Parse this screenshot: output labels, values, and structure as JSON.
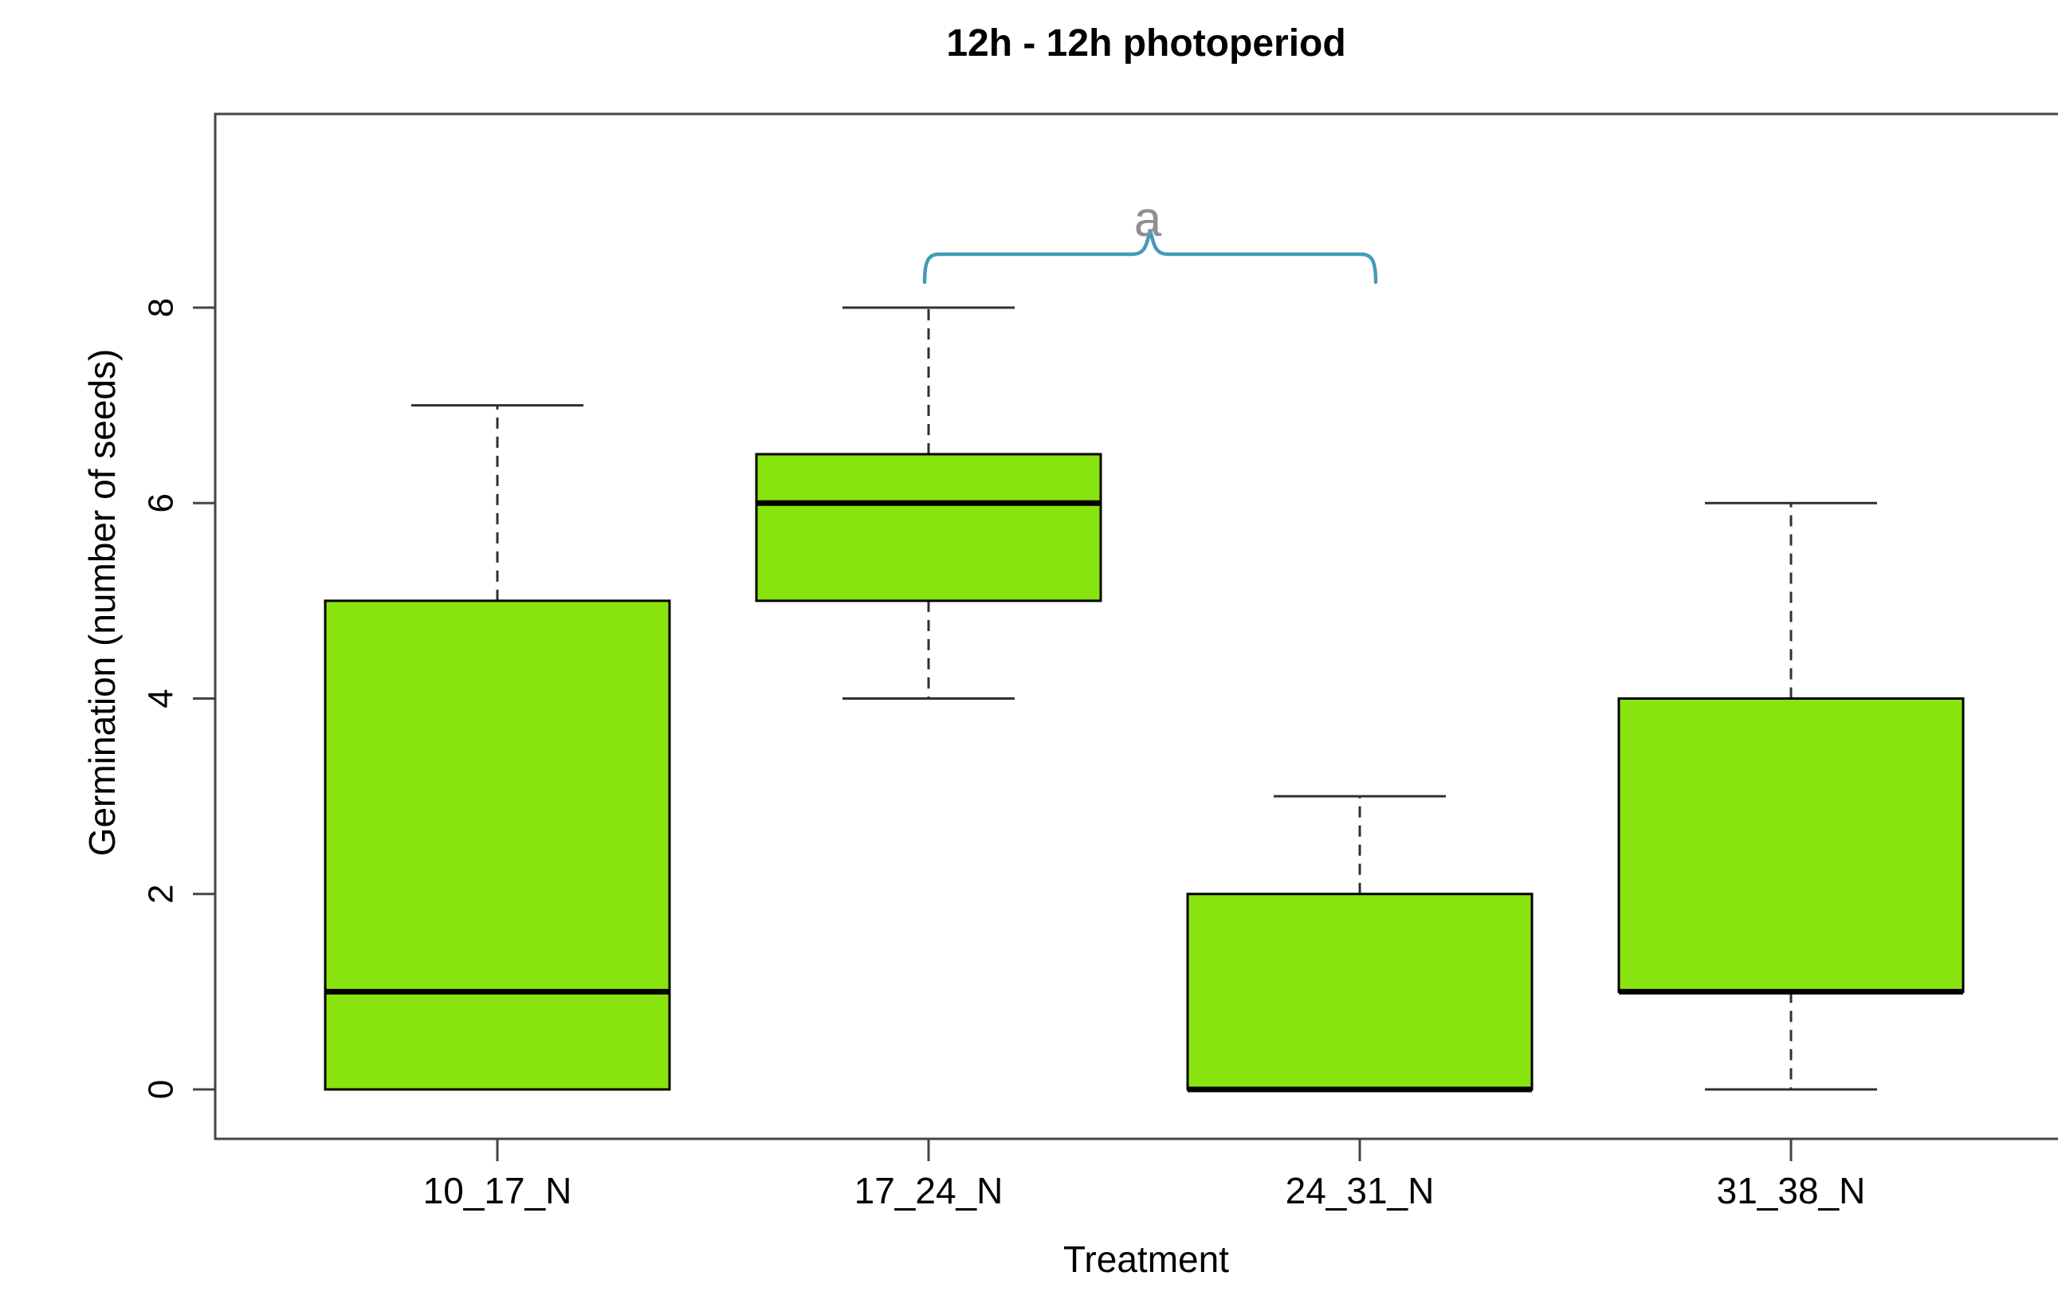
{
  "chart_data": {
    "type": "boxplot",
    "title": "12h - 12h photoperiod",
    "xlabel": "Treatment",
    "ylabel": "Germination (number of seeds)",
    "categories": [
      "10_17_N",
      "17_24_N",
      "24_31_N",
      "31_38_N"
    ],
    "y_ticks": [
      0,
      2,
      4,
      6,
      8
    ],
    "ylim": [
      -0.5,
      10
    ],
    "grid": false,
    "legend": null,
    "series": [
      {
        "name": "10_17_N",
        "min": 0,
        "q1": 0,
        "median": 1,
        "q3": 5,
        "max": 7
      },
      {
        "name": "17_24_N",
        "min": 4,
        "q1": 5,
        "median": 6,
        "q3": 6.5,
        "max": 8
      },
      {
        "name": "24_31_N",
        "min": 0,
        "q1": 0,
        "median": 0,
        "q3": 2,
        "max": 3
      },
      {
        "name": "31_38_N",
        "min": 0,
        "q1": 1,
        "median": 1,
        "q3": 4,
        "max": 6
      }
    ],
    "annotation": {
      "label": "a",
      "from_category": "17_24_N",
      "to_category": "24_31_N"
    },
    "colors": {
      "box_fill": "#89E30E",
      "box_border": "#000000",
      "median": "#000000",
      "axis": "#454545",
      "whisker": "#303030",
      "bracket": "#4699B8",
      "annotation_text": "#8F8F8F",
      "text": "#000000"
    }
  }
}
